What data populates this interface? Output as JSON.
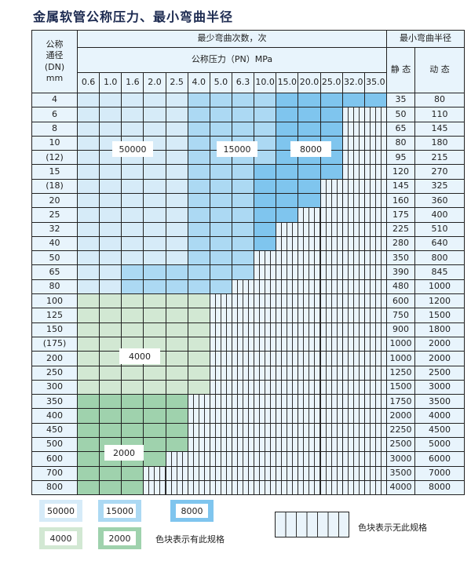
{
  "title": "金属软管公称压力、最小弯曲半径",
  "header": {
    "dn_label": "公称\n通径\n(DN)\nmm",
    "cycles_label": "最少弯曲次数，次",
    "pressure_label": "公称压力（PN）MPa",
    "radius_label": "最小弯曲半径",
    "static_label": "静 态",
    "dynamic_label": "动 态",
    "pressures": [
      "0.6",
      "1.0",
      "1.6",
      "2.0",
      "2.5",
      "4.0",
      "5.0",
      "6.3",
      "10.0",
      "15.0",
      "20.0",
      "25.0",
      "32.0",
      "35.0"
    ]
  },
  "zone_key": {
    "A": "50000",
    "B": "15000",
    "C": "8000",
    "D": "4000",
    "E": "2000"
  },
  "colors": {
    "A": "#d6ebf8",
    "B": "#acd9f3",
    "C": "#7fc5ee",
    "D": "#d2e8d3",
    "E": "#9fd2ad",
    "empty": "#eaf4fb",
    "header": "#e8f4fc"
  },
  "rows": [
    {
      "dn": "4",
      "zones": "AAAAABBBBCCCCC",
      "static": "35",
      "dynamic": "80"
    },
    {
      "dn": "6",
      "zones": "AAAAABBBBCCC--",
      "static": "50",
      "dynamic": "110"
    },
    {
      "dn": "8",
      "zones": "AAAAABBBBCCC--",
      "static": "65",
      "dynamic": "145"
    },
    {
      "dn": "10",
      "zones": "AAAAABBBBCCC--",
      "static": "80",
      "dynamic": "180"
    },
    {
      "dn": "(12)",
      "zones": "AAAAABBBBCCC--",
      "static": "95",
      "dynamic": "215"
    },
    {
      "dn": "15",
      "zones": "AAAAABBBCCCC--",
      "static": "120",
      "dynamic": "270"
    },
    {
      "dn": "(18)",
      "zones": "AAAAABBBCCC---",
      "static": "145",
      "dynamic": "325"
    },
    {
      "dn": "20",
      "zones": "AAAAABBBCCC---",
      "static": "160",
      "dynamic": "360"
    },
    {
      "dn": "25",
      "zones": "AAAAABBBCC----",
      "static": "175",
      "dynamic": "400"
    },
    {
      "dn": "32",
      "zones": "AAAAABBBC-----",
      "static": "225",
      "dynamic": "510"
    },
    {
      "dn": "40",
      "zones": "AAAAABBBC-----",
      "static": "280",
      "dynamic": "640"
    },
    {
      "dn": "50",
      "zones": "AAAAABBB------",
      "static": "350",
      "dynamic": "800"
    },
    {
      "dn": "65",
      "zones": "AABBBBBB------",
      "static": "390",
      "dynamic": "845"
    },
    {
      "dn": "80",
      "zones": "AABBBBB-------",
      "static": "480",
      "dynamic": "1000"
    },
    {
      "dn": "100",
      "zones": "DDDDDD--------",
      "static": "600",
      "dynamic": "1200"
    },
    {
      "dn": "125",
      "zones": "DDDDDD--------",
      "static": "750",
      "dynamic": "1500"
    },
    {
      "dn": "150",
      "zones": "DDDDDD--------",
      "static": "900",
      "dynamic": "1800"
    },
    {
      "dn": "(175)",
      "zones": "DDDDDD--------",
      "static": "1000",
      "dynamic": "2000"
    },
    {
      "dn": "200",
      "zones": "DDDDDD--------",
      "static": "1000",
      "dynamic": "2000"
    },
    {
      "dn": "250",
      "zones": "DDDDDD--------",
      "static": "1250",
      "dynamic": "2500"
    },
    {
      "dn": "300",
      "zones": "DDDDDD--------",
      "static": "1500",
      "dynamic": "3000"
    },
    {
      "dn": "350",
      "zones": "EEEEE---------",
      "static": "1750",
      "dynamic": "3500"
    },
    {
      "dn": "400",
      "zones": "EEEEE---------",
      "static": "2000",
      "dynamic": "4000"
    },
    {
      "dn": "450",
      "zones": "EEEEE---------",
      "static": "2250",
      "dynamic": "4500"
    },
    {
      "dn": "500",
      "zones": "EEEEE---------",
      "static": "2500",
      "dynamic": "5000"
    },
    {
      "dn": "600",
      "zones": "EEEE----------",
      "static": "3000",
      "dynamic": "6000"
    },
    {
      "dn": "700",
      "zones": "EEE-----------",
      "static": "3500",
      "dynamic": "7000"
    },
    {
      "dn": "800",
      "zones": "EEE-----------",
      "static": "4000",
      "dynamic": "8000"
    }
  ],
  "region_labels": [
    "50000",
    "15000",
    "8000",
    "4000",
    "2000"
  ],
  "legend": {
    "items": [
      "50000",
      "15000",
      "8000",
      "4000",
      "2000"
    ],
    "has_spec_text": "色块表示有此规格",
    "no_spec_text": "色块表示无此规格"
  }
}
